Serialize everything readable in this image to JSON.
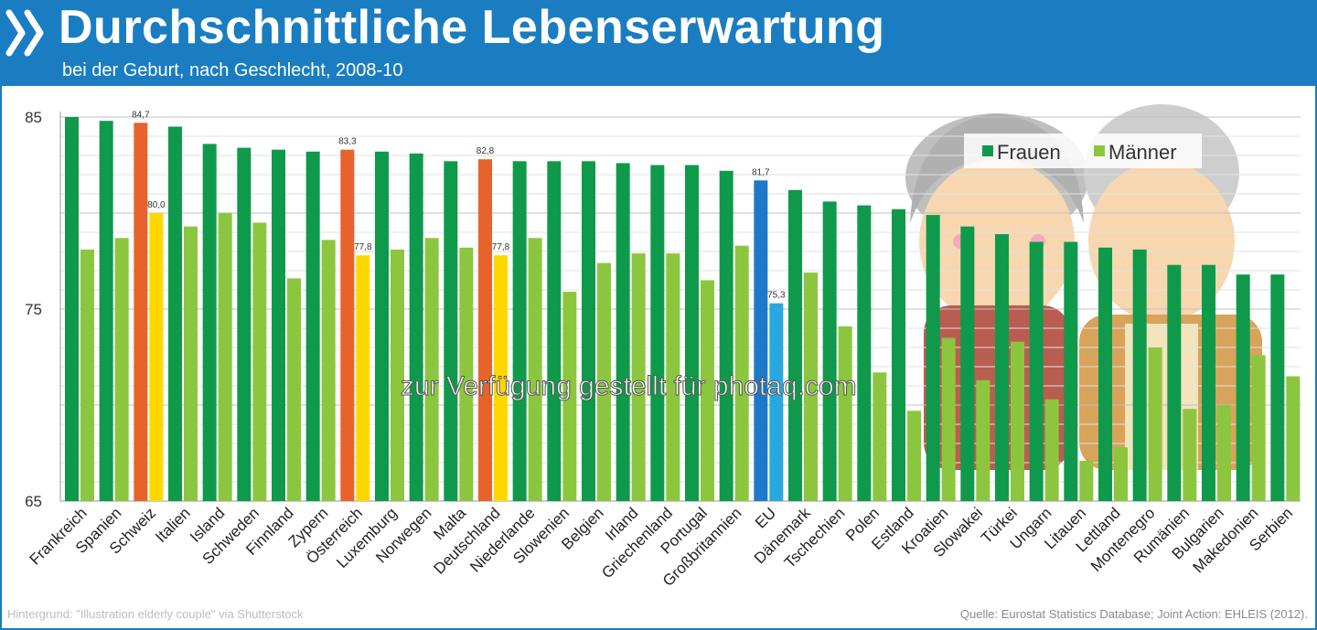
{
  "header": {
    "title": "Durchschnittliche Lebenserwartung",
    "subtitle": "bei der Geburt, nach Geschlecht, 2008-10"
  },
  "footer": {
    "source_left": "Hintergrund: \"Illustration elderly couple\" via Shutterstock",
    "source_right": "Quelle: Eurostat Statistics Database; Joint Action: EHLEIS (2012)."
  },
  "watermark": "zur Verfügung gestellt für photaq.com",
  "colors": {
    "header_bg": "#1a7dc2",
    "frauen": "#0e9a4a",
    "maenner": "#8cc63f",
    "highlight_frauen": "#e8622c",
    "highlight_maenner": "#ffd700",
    "eu_frauen": "#1e78c8",
    "eu_maenner": "#29a8e0",
    "grid": "#d6d6d6"
  },
  "chart_data": {
    "type": "bar",
    "title": "Durchschnittliche Lebenserwartung",
    "subtitle": "bei der Geburt, nach Geschlecht, 2008-10",
    "xlabel": "",
    "ylabel": "",
    "ylim": [
      65,
      85
    ],
    "yticks": [
      65,
      75,
      85
    ],
    "grid": true,
    "legend": "top-right",
    "categories": [
      "Frankreich",
      "Spanien",
      "Schweiz",
      "Italien",
      "Island",
      "Schweden",
      "Finnland",
      "Zypern",
      "Österreich",
      "Luxemburg",
      "Norwegen",
      "Malta",
      "Deutschland",
      "Niederlande",
      "Slowenien",
      "Belgien",
      "Irland",
      "Griechenland",
      "Portugal",
      "Großbritannien",
      "EU",
      "Dänemark",
      "Tschechien",
      "Polen",
      "Estland",
      "Kroatien",
      "Slowakei",
      "Türkei",
      "Ungarn",
      "Litauen",
      "Lettland",
      "Montenegro",
      "Rumänien",
      "Bulgarien",
      "Makedonien",
      "Serbien"
    ],
    "series": [
      {
        "name": "Frauen",
        "values": [
          85.0,
          84.8,
          84.7,
          84.5,
          83.6,
          83.4,
          83.3,
          83.2,
          83.3,
          83.2,
          83.1,
          82.7,
          82.8,
          82.7,
          82.7,
          82.7,
          82.6,
          82.5,
          82.5,
          82.2,
          81.7,
          81.2,
          80.6,
          80.4,
          80.2,
          79.9,
          79.3,
          78.9,
          78.5,
          78.5,
          78.2,
          78.1,
          77.3,
          77.3,
          76.8,
          76.8
        ]
      },
      {
        "name": "Männer",
        "values": [
          78.1,
          78.7,
          80.0,
          79.3,
          80.0,
          79.5,
          76.6,
          78.6,
          77.8,
          78.1,
          78.7,
          78.2,
          77.8,
          78.7,
          75.9,
          77.4,
          77.9,
          77.9,
          76.5,
          78.3,
          75.3,
          76.9,
          74.1,
          71.7,
          69.7,
          73.5,
          71.3,
          73.3,
          70.3,
          67.1,
          67.8,
          73.0,
          69.8,
          70.0,
          72.6,
          71.5
        ]
      }
    ],
    "data_labels": {
      "Schweiz": [
        "84,7",
        "80,0"
      ],
      "Österreich": [
        "83,3",
        "77,8"
      ],
      "Deutschland": [
        "82,8",
        "77,8"
      ],
      "EU": [
        "81,7",
        "75,3"
      ]
    }
  }
}
